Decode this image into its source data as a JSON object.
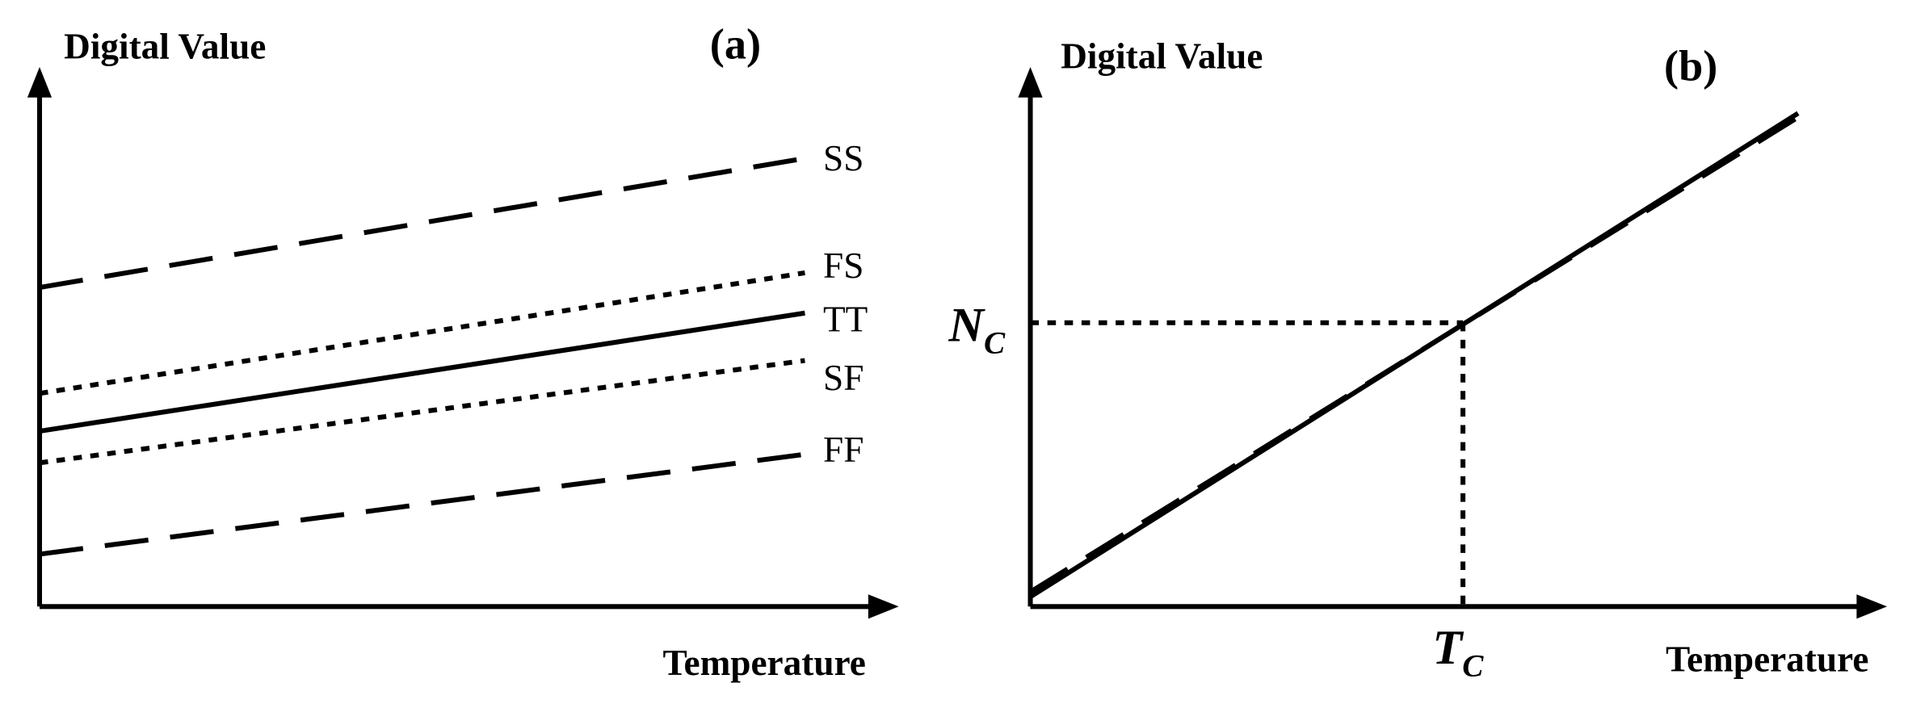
{
  "panel_a": {
    "title": "(a)",
    "y_label": "Digital Value",
    "x_label": "Temperature",
    "curves": [
      "SS",
      "FS",
      "TT",
      "SF",
      "FF"
    ]
  },
  "panel_b": {
    "title": "(b)",
    "y_label": "Digital Value",
    "x_label": "Temperature",
    "y_marker": {
      "main": "N",
      "sub": "C"
    },
    "x_marker": {
      "main": "T",
      "sub": "C"
    }
  }
}
